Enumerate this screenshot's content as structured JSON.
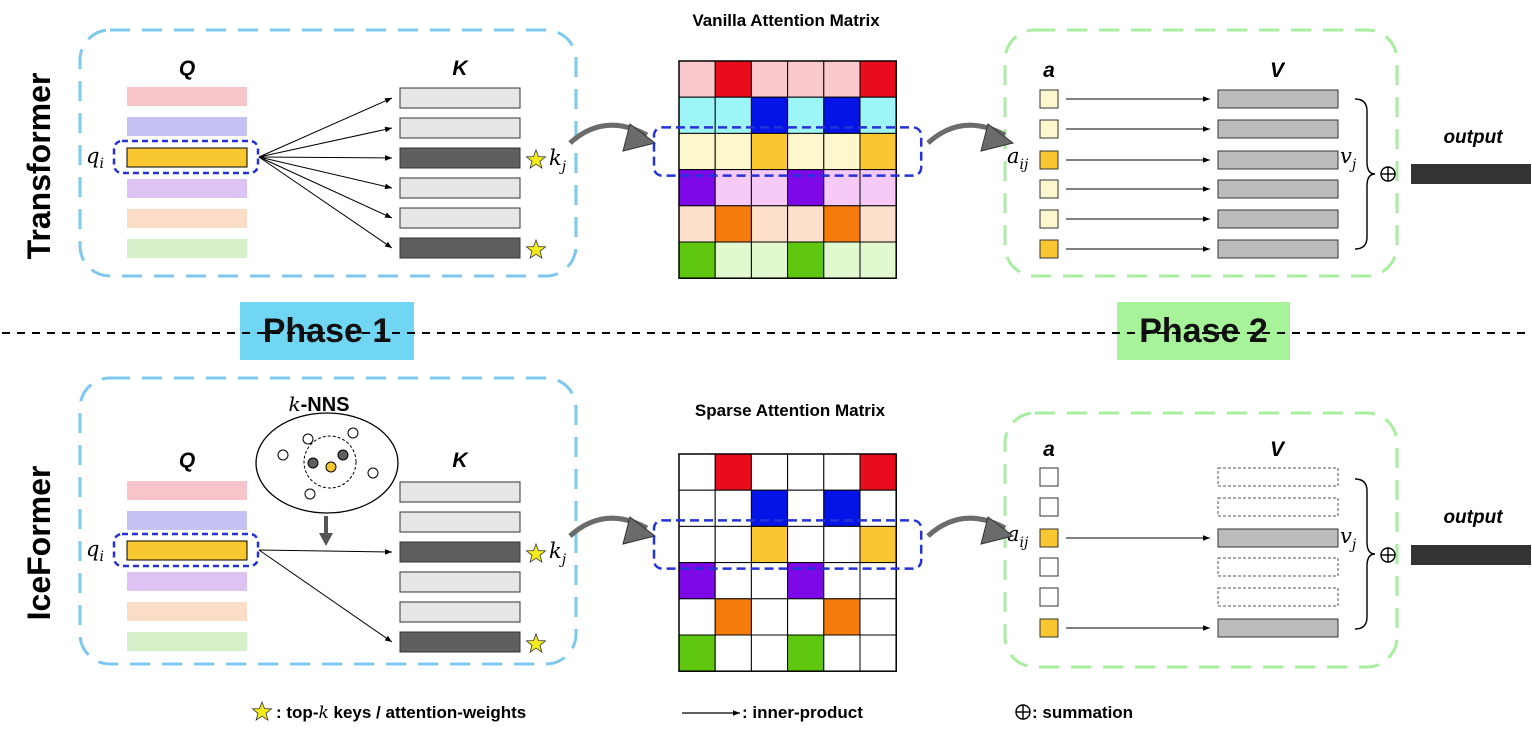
{
  "row_labels": {
    "top": "Transformer",
    "bottom": "IceFormer"
  },
  "phases": {
    "phase1": "Phase 1",
    "phase2": "Phase 2"
  },
  "matrix_titles": {
    "vanilla": "Vanilla Attention Matrix",
    "sparse": "Sparse Attention Matrix"
  },
  "labels": {
    "Q": "Q",
    "K": "K",
    "a": "a",
    "V": "V",
    "qi_base": "q",
    "qi_sub": "i",
    "kj_base": "k",
    "kj_sub": "j",
    "aij_base": "a",
    "aij_sub": "ij",
    "vj_base": "v",
    "vj_sub": "j",
    "output": "output",
    "knns_k": "k",
    "knns_rest": "-NNS"
  },
  "legend": {
    "star_pre": ": top-",
    "star_k": "k",
    "star_post": " keys / attention-weights",
    "arrow": ": inner-product",
    "sum": ": summation"
  },
  "colors": {
    "phase1_bg": "#70d6f3",
    "phase2_bg": "#a6f39a",
    "phase1_box": "#7ec8ef",
    "phase2_box": "#a8ee9f",
    "highlight": "#2432d6",
    "star": "#f5ec1c",
    "key_dark": "#5f5f5f",
    "key_light": "#e6e6e6",
    "value_gray": "#bcbcbc",
    "output_bar": "#333333",
    "q_rows": [
      "#f7c5c9",
      "#c5c3f3",
      "#f9c72f",
      "#dcc3f3",
      "#fbdcc6",
      "#d6f1c9"
    ]
  },
  "vanilla_matrix": [
    [
      "#f9c9cd",
      "#e80c1c",
      "#f9c9cd",
      "#f9c9cd",
      "#f9c9cd",
      "#e80c1c"
    ],
    [
      "#9ef5f7",
      "#9ef5f7",
      "#0514e6",
      "#9ef5f7",
      "#0514e6",
      "#9ef5f7"
    ],
    [
      "#fdf7cd",
      "#fdf7cd",
      "#fbc731",
      "#fdf7cd",
      "#fdf7cd",
      "#fbc731"
    ],
    [
      "#7d08e8",
      "#f7c9f7",
      "#f7c9f7",
      "#7d08e8",
      "#f7c9f7",
      "#f7c9f7"
    ],
    [
      "#fde0cc",
      "#f57c0c",
      "#fde0cc",
      "#fde0cc",
      "#f57c0c",
      "#fde0cc"
    ],
    [
      "#5fc70f",
      "#e2f9cf",
      "#e2f9cf",
      "#5fc70f",
      "#e2f9cf",
      "#e2f9cf"
    ]
  ],
  "sparse_matrix": [
    [
      "#ffffff",
      "#e80c1c",
      "#ffffff",
      "#ffffff",
      "#ffffff",
      "#e80c1c"
    ],
    [
      "#ffffff",
      "#ffffff",
      "#0514e6",
      "#ffffff",
      "#0514e6",
      "#ffffff"
    ],
    [
      "#ffffff",
      "#ffffff",
      "#fbc731",
      "#ffffff",
      "#ffffff",
      "#fbc731"
    ],
    [
      "#7d08e8",
      "#ffffff",
      "#ffffff",
      "#7d08e8",
      "#ffffff",
      "#ffffff"
    ],
    [
      "#ffffff",
      "#f57c0c",
      "#ffffff",
      "#ffffff",
      "#f57c0c",
      "#ffffff"
    ],
    [
      "#5fc70f",
      "#ffffff",
      "#ffffff",
      "#5fc70f",
      "#ffffff",
      "#ffffff"
    ]
  ],
  "transformer_weights": [
    "#fdf7cd",
    "#fdf7cd",
    "#fbc731",
    "#fdf7cd",
    "#fdf7cd",
    "#fbc731"
  ],
  "iceformer_weights": [
    "#ffffff",
    "#ffffff",
    "#fbc731",
    "#ffffff",
    "#ffffff",
    "#fbc731"
  ]
}
